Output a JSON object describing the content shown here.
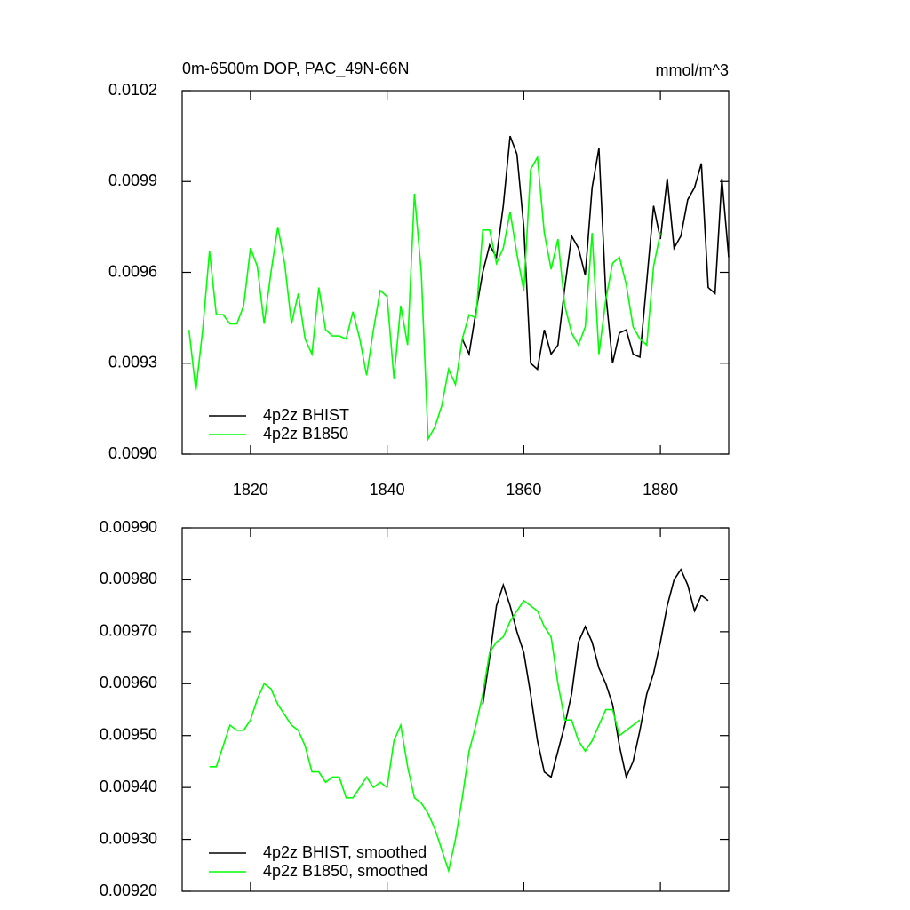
{
  "chart_data": [
    {
      "type": "line",
      "title": "0m-6500m DOP, PAC_49N-66N",
      "units": "mmol/m^3",
      "xlim": [
        1810,
        1890
      ],
      "xticks": [
        1820,
        1840,
        1860,
        1880
      ],
      "show_xtick_labels": true,
      "ylim": [
        0.009,
        0.0102
      ],
      "yticks": [
        {
          "value": 0.009,
          "label": "0.0090"
        },
        0.0093,
        0.0096,
        0.0099,
        0.0102
      ],
      "legend": "lower left",
      "series": [
        {
          "name": "4p2z BHIST",
          "color": "#000000",
          "x": [
            1851,
            1852,
            1853,
            1854,
            1855,
            1856,
            1857,
            1858,
            1859,
            1860,
            1861,
            1862,
            1863,
            1864,
            1865,
            1866,
            1867,
            1868,
            1869,
            1870,
            1871,
            1872,
            1873,
            1874,
            1875,
            1876,
            1877,
            1878,
            1879,
            1880,
            1881,
            1882,
            1883,
            1884,
            1885,
            1886,
            1887,
            1888,
            1889,
            1890
          ],
          "values": [
            0.00938,
            0.00933,
            0.00947,
            0.0096,
            0.00969,
            0.00965,
            0.00982,
            0.01005,
            0.00999,
            0.00975,
            0.0093,
            0.00928,
            0.00941,
            0.00933,
            0.00936,
            0.00955,
            0.00972,
            0.00968,
            0.00959,
            0.00988,
            0.01001,
            0.00953,
            0.0093,
            0.0094,
            0.00941,
            0.00933,
            0.00932,
            0.00957,
            0.00982,
            0.00971,
            0.00991,
            0.00968,
            0.00972,
            0.00984,
            0.00988,
            0.00996,
            0.00955,
            0.00953,
            0.00991,
            0.00965
          ]
        },
        {
          "name": "4p2z B1850",
          "color": "#00ff00",
          "x": [
            1811,
            1812,
            1813,
            1814,
            1815,
            1816,
            1817,
            1818,
            1819,
            1820,
            1821,
            1822,
            1823,
            1824,
            1825,
            1826,
            1827,
            1828,
            1829,
            1830,
            1831,
            1832,
            1833,
            1834,
            1835,
            1836,
            1837,
            1838,
            1839,
            1840,
            1841,
            1842,
            1843,
            1844,
            1845,
            1846,
            1847,
            1848,
            1849,
            1850,
            1851,
            1852,
            1853,
            1854,
            1855,
            1856,
            1857,
            1858,
            1859,
            1860,
            1861,
            1862,
            1863,
            1864,
            1865,
            1866,
            1867,
            1868,
            1869,
            1870,
            1871,
            1872,
            1873,
            1874,
            1875,
            1876,
            1877,
            1878,
            1879,
            1880
          ],
          "values": [
            0.00941,
            0.00921,
            0.00941,
            0.00967,
            0.00946,
            0.00946,
            0.00943,
            0.00943,
            0.00949,
            0.00968,
            0.00962,
            0.00943,
            0.0096,
            0.00975,
            0.00963,
            0.00943,
            0.00953,
            0.00938,
            0.00933,
            0.00955,
            0.00941,
            0.00939,
            0.00939,
            0.00938,
            0.00947,
            0.00938,
            0.00926,
            0.00941,
            0.00954,
            0.00952,
            0.00925,
            0.00949,
            0.00936,
            0.00986,
            0.0096,
            0.00905,
            0.00909,
            0.00916,
            0.00928,
            0.00923,
            0.00938,
            0.00946,
            0.00945,
            0.00974,
            0.00974,
            0.00963,
            0.00968,
            0.0098,
            0.00966,
            0.00954,
            0.00994,
            0.00998,
            0.00973,
            0.00961,
            0.00971,
            0.00949,
            0.0094,
            0.00936,
            0.00942,
            0.00973,
            0.00933,
            0.00951,
            0.00963,
            0.00965,
            0.00956,
            0.00942,
            0.00938,
            0.00936,
            0.00962,
            0.00973
          ]
        }
      ]
    },
    {
      "type": "line",
      "xlim": [
        1810,
        1890
      ],
      "xticks": [
        1820,
        1840,
        1860,
        1880
      ],
      "show_xtick_labels": false,
      "ylim": [
        0.0092,
        0.0099
      ],
      "yticks": [
        {
          "value": 0.0092,
          "label": "0.00920"
        },
        {
          "value": 0.0093,
          "label": "0.00930"
        },
        {
          "value": 0.0094,
          "label": "0.00940"
        },
        {
          "value": 0.0095,
          "label": "0.00950"
        },
        {
          "value": 0.0096,
          "label": "0.00960"
        },
        {
          "value": 0.0097,
          "label": "0.00970"
        },
        {
          "value": 0.0098,
          "label": "0.00980"
        },
        {
          "value": 0.0099,
          "label": "0.00990"
        }
      ],
      "legend": "lower left",
      "series": [
        {
          "name": "4p2z BHIST, smoothed",
          "color": "#000000",
          "x": [
            1854,
            1855,
            1856,
            1857,
            1858,
            1859,
            1860,
            1861,
            1862,
            1863,
            1864,
            1865,
            1866,
            1867,
            1868,
            1869,
            1870,
            1871,
            1872,
            1873,
            1874,
            1875,
            1876,
            1877,
            1878,
            1879,
            1880,
            1881,
            1882,
            1883,
            1884,
            1885,
            1886,
            1887
          ],
          "values": [
            0.00956,
            0.00965,
            0.00975,
            0.00979,
            0.00975,
            0.0097,
            0.00966,
            0.00958,
            0.00949,
            0.00943,
            0.00942,
            0.00947,
            0.00952,
            0.00958,
            0.00968,
            0.00971,
            0.00968,
            0.00963,
            0.0096,
            0.00956,
            0.00948,
            0.00942,
            0.00945,
            0.00951,
            0.00958,
            0.00962,
            0.00968,
            0.00975,
            0.0098,
            0.00982,
            0.00979,
            0.00974,
            0.00977,
            0.00976
          ]
        },
        {
          "name": "4p2z B1850, smoothed",
          "color": "#00ff00",
          "x": [
            1814,
            1815,
            1816,
            1817,
            1818,
            1819,
            1820,
            1821,
            1822,
            1823,
            1824,
            1825,
            1826,
            1827,
            1828,
            1829,
            1830,
            1831,
            1832,
            1833,
            1834,
            1835,
            1836,
            1837,
            1838,
            1839,
            1840,
            1841,
            1842,
            1843,
            1844,
            1845,
            1846,
            1847,
            1848,
            1849,
            1850,
            1851,
            1852,
            1853,
            1854,
            1855,
            1856,
            1857,
            1858,
            1859,
            1860,
            1861,
            1862,
            1863,
            1864,
            1865,
            1866,
            1867,
            1868,
            1869,
            1870,
            1871,
            1872,
            1873,
            1874,
            1875,
            1876,
            1877
          ],
          "values": [
            0.00944,
            0.00944,
            0.00948,
            0.00952,
            0.00951,
            0.00951,
            0.00953,
            0.00957,
            0.0096,
            0.00959,
            0.00956,
            0.00954,
            0.00952,
            0.00951,
            0.00948,
            0.00943,
            0.00943,
            0.00941,
            0.00942,
            0.00942,
            0.00938,
            0.00938,
            0.0094,
            0.00942,
            0.0094,
            0.00941,
            0.0094,
            0.00949,
            0.00952,
            0.00944,
            0.00938,
            0.00937,
            0.00935,
            0.00932,
            0.00928,
            0.00924,
            0.0093,
            0.00938,
            0.00947,
            0.00952,
            0.00958,
            0.00966,
            0.00968,
            0.00969,
            0.00972,
            0.00974,
            0.00976,
            0.00975,
            0.00974,
            0.00971,
            0.00969,
            0.0096,
            0.00953,
            0.00953,
            0.00949,
            0.00947,
            0.00949,
            0.00952,
            0.00955,
            0.00955,
            0.0095,
            0.00951,
            0.00952,
            0.00953
          ]
        }
      ]
    }
  ]
}
